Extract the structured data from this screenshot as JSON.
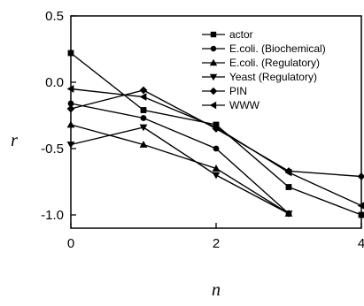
{
  "chart_data": {
    "type": "line",
    "title": "",
    "xlabel": "n",
    "ylabel": "r",
    "xlim": [
      0,
      4
    ],
    "ylim": [
      -1.1,
      0.5
    ],
    "xticks": [
      0,
      2,
      4
    ],
    "xtick_labels": [
      "0",
      "2",
      "4"
    ],
    "yticks": [
      0.5,
      0.0,
      -0.5,
      -1.0
    ],
    "ytick_labels": [
      "0.5",
      "0.0",
      "-0.5",
      "-1.0"
    ],
    "grid": false,
    "legend_position": "top-right",
    "series": [
      {
        "name": "actor",
        "marker": "square",
        "x": [
          0,
          1,
          2,
          3,
          4
        ],
        "y": [
          0.22,
          -0.21,
          -0.32,
          -0.79,
          -1.0
        ]
      },
      {
        "name": "E.coli. (Biochemical)",
        "marker": "circle",
        "x": [
          0,
          1,
          2,
          3
        ],
        "y": [
          -0.16,
          -0.27,
          -0.5,
          -0.99
        ]
      },
      {
        "name": "E.coli. (Regulatory)",
        "marker": "triangle-up",
        "x": [
          0,
          1,
          2,
          3
        ],
        "y": [
          -0.32,
          -0.47,
          -0.65,
          -0.99
        ]
      },
      {
        "name": "Yeast (Regulatory)",
        "marker": "triangle-down",
        "x": [
          0,
          1,
          2,
          3
        ],
        "y": [
          -0.47,
          -0.34,
          -0.7,
          -0.99
        ]
      },
      {
        "name": "PIN",
        "marker": "diamond",
        "x": [
          0,
          1,
          2,
          3,
          4
        ],
        "y": [
          -0.2,
          -0.06,
          -0.35,
          -0.67,
          -0.71
        ]
      },
      {
        "name": "WWW",
        "marker": "triangle-left",
        "x": [
          0,
          1,
          2,
          3,
          4
        ],
        "y": [
          -0.05,
          -0.11,
          -0.34,
          -0.68,
          -0.93
        ]
      }
    ]
  }
}
